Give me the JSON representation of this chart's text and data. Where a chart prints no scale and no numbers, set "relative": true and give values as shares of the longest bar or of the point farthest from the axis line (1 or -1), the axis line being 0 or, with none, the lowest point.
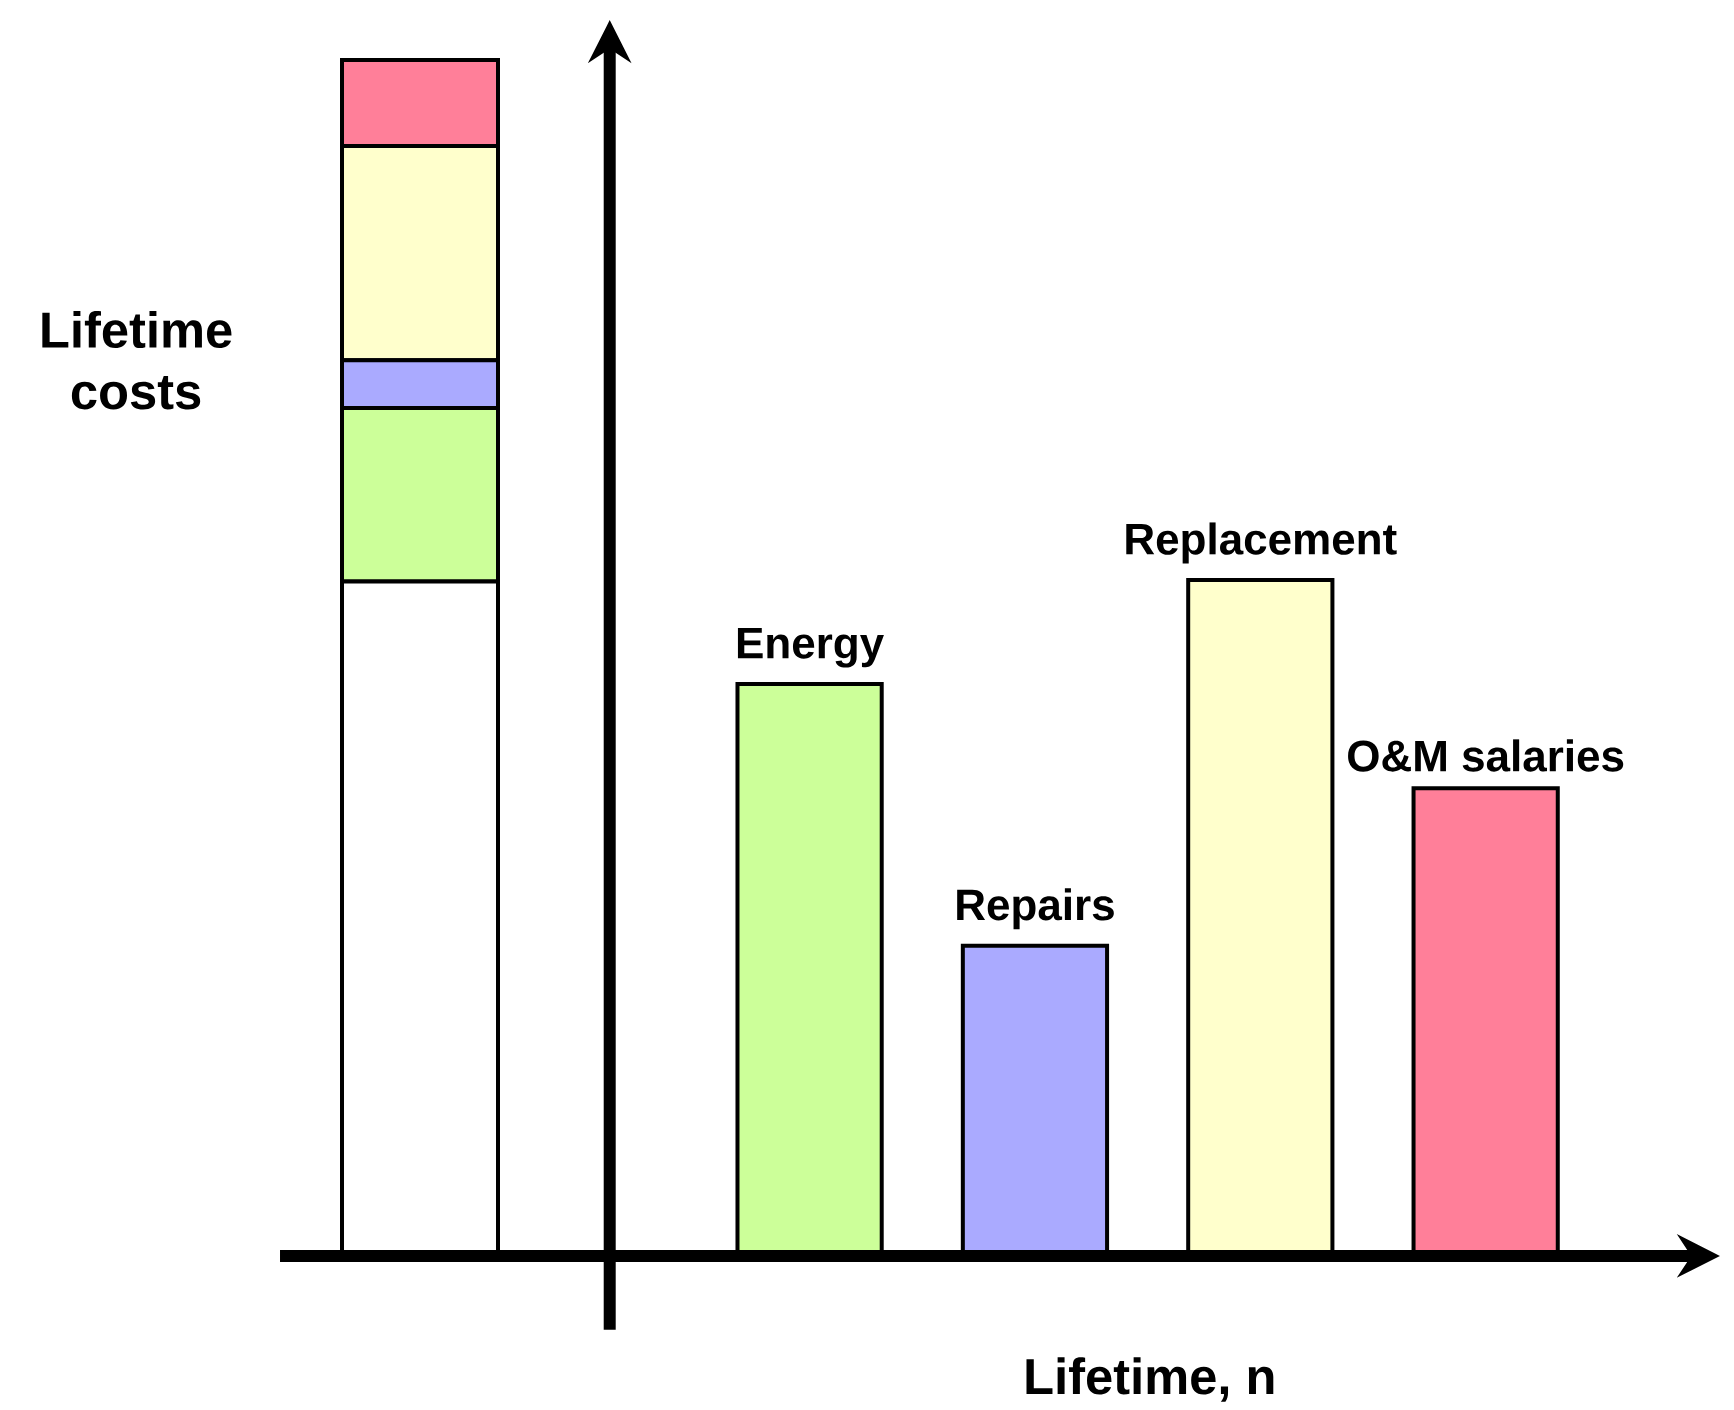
{
  "chart_data": [
    {
      "type": "bar",
      "stacked": true,
      "relative": true,
      "ylabel": "Lifetime costs",
      "categories": [
        null
      ],
      "series": [
        {
          "color": "#ffffff",
          "values": [
            0.564
          ]
        },
        {
          "color": "#ccff99",
          "values": [
            0.145
          ]
        },
        {
          "color": "#aaaaff",
          "values": [
            0.04
          ]
        },
        {
          "color": "#ffffcc",
          "values": [
            0.179
          ]
        },
        {
          "color": "#ff7f99",
          "values": [
            0.072
          ]
        }
      ]
    },
    {
      "type": "bar",
      "relative": true,
      "xlabel": "Lifetime, n",
      "categories": [
        "Energy",
        "Repairs",
        "Replacement",
        "O&M salaries"
      ],
      "values": [
        0.846,
        0.459,
        1.0,
        0.692
      ],
      "colors": [
        "#ccff99",
        "#aaaaff",
        "#ffffcc",
        "#ff7f99"
      ]
    }
  ]
}
